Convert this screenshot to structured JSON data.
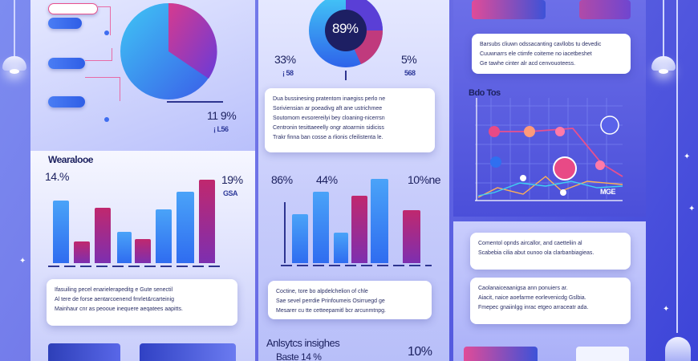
{
  "left_panel": {
    "heading": "Wearalooe",
    "pills": [
      "",
      "",
      "",
      ""
    ],
    "pie_labels": [
      "11 9%",
      "¡ L56"
    ],
    "bar_chart_labels": [
      "14.%",
      "19%",
      "GSA"
    ]
  },
  "middle_panel": {
    "donut_center": "89%",
    "donut_labels": [
      "33%",
      "5%",
      "¡ 58",
      "568"
    ],
    "bar_chart_labels": [
      "86%",
      "44%",
      "10%ne"
    ],
    "footer_heading": "Anlsytcs insighes",
    "footer_sub": "Baste 14 %",
    "footer_value": "10%"
  },
  "right_panel": {
    "line_chart_title": "Bdo Tos",
    "line_chart_badge": "MGE"
  },
  "cards": {
    "mid_top": [
      "Dua bussinesing pratentom inaegiss perlo ne",
      "Soriviensian ar poeadivg aft ane ustrichmee",
      "Soutomom evsorereilyi bey cloaning-nicerrsn",
      "Centronin tesittaeeelly ongr atoarmin sidiciss",
      "Trakr finna ban cosse a rlionis cfeilistenta le."
    ],
    "left_bottom": [
      "Ifasuiling pecel enarielerapeditg e Gute senectil",
      "Al tere de forse aentarcoenend fmrlet&rcarteinig",
      "Mainhaur cnr as peooue inequere aeqatees aapitts."
    ],
    "mid_bottom": [
      "Coctine, tore bo alpdelchelion of chle",
      "Sae sevel perrdie Prinfoumeis Osirruegd ge",
      "Mesarer cu tte cetteepamitl bcr arcunmtnpg."
    ],
    "right_top": [
      "Barsubs cliuwn odssacanting cavllobs tu devedic",
      "Cuuwnarrs ele ctimfe coiteme no iacetbeshet",
      "Ge tawhe cinter alr acd cenvouoteess."
    ],
    "right_mid": [
      "Comentol opnds aircallor, and caetteliin al",
      "Scabebia cilia abut ounoo ola clarbanbiagieas."
    ],
    "right_bottom": [
      "Caolanaiceaanigsa ann ponuiers ar.",
      "Aiacit, naice aoefarme eorlevenicdg Gslbia.",
      "Fmepec gnaiinlgg inrac etgeo arraceatr ada."
    ]
  },
  "colors": {
    "accent_blue": "#2f5ee6",
    "accent_pink": "#e8508d",
    "accent_purple": "#5b3fd6",
    "bar_blue": "#2f6cf0",
    "bar_magenta": "#c0286e"
  }
}
